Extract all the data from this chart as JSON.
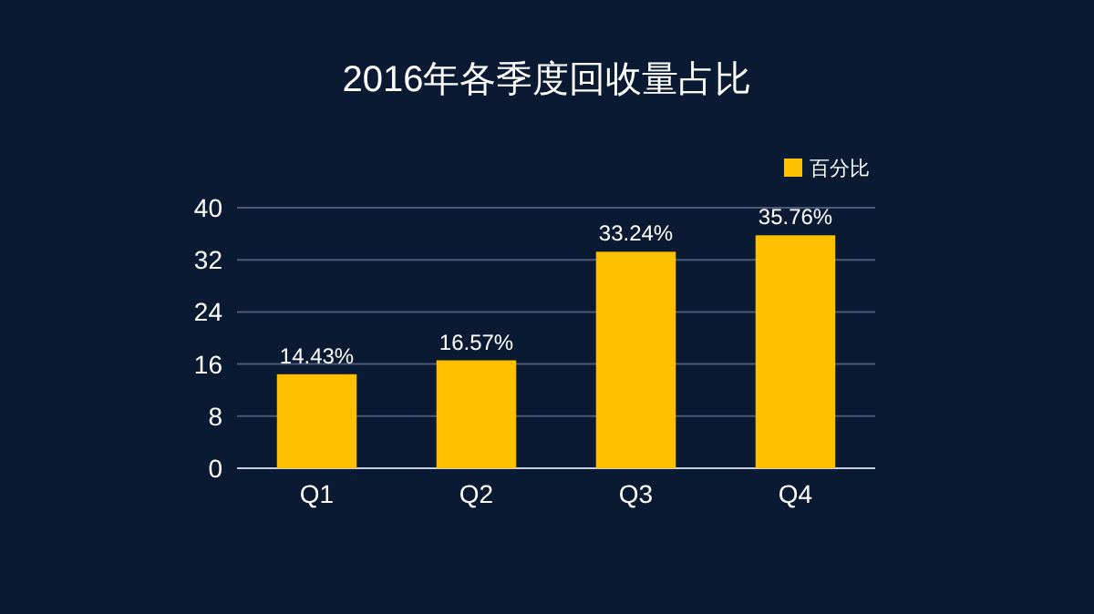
{
  "chart_data": {
    "type": "bar",
    "title": "2016年各季度回收量占比",
    "categories": [
      "Q1",
      "Q2",
      "Q3",
      "Q4"
    ],
    "series": [
      {
        "name": "百分比",
        "color": "#ffc000",
        "values": [
          14.43,
          16.57,
          33.24,
          35.76
        ],
        "value_labels": [
          "14.43%",
          "16.57%",
          "33.24%",
          "35.76%"
        ]
      }
    ],
    "ylim": [
      0,
      40
    ],
    "yticks": [
      0,
      8,
      16,
      24,
      32,
      40
    ],
    "grid": "y",
    "legend": "top right"
  }
}
